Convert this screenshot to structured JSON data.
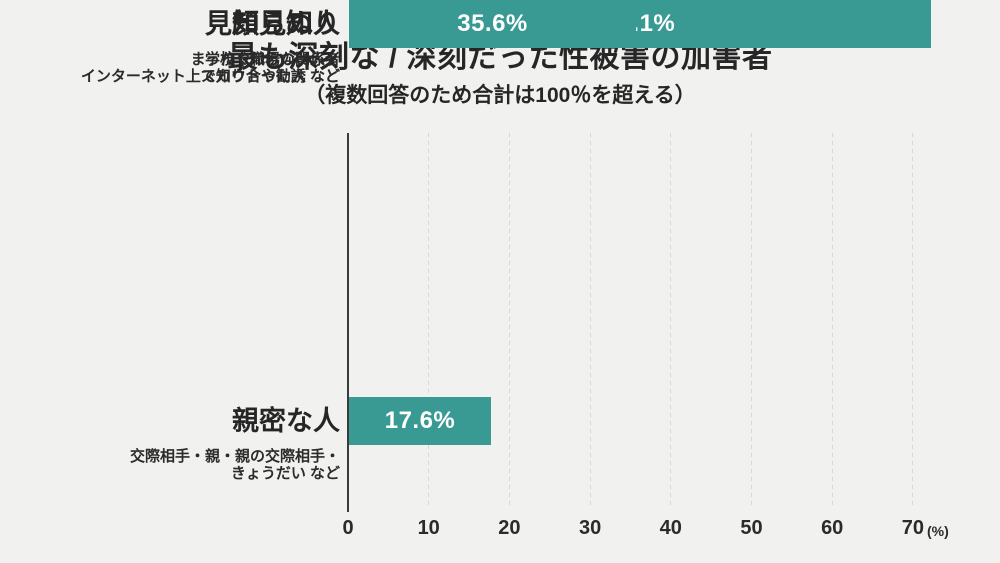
{
  "title": "最も深刻な / 深刻だった性被害の加害者",
  "subtitle": "（複数回答のため合計は100％を超える）",
  "colors": {
    "background": "#f1f1ef",
    "bar": "#399a94",
    "text": "#262626",
    "axis": "#3b3b3b",
    "gridline": "#d7d7d5",
    "value_label": "#ffffff"
  },
  "chart_data": {
    "type": "bar",
    "orientation": "horizontal",
    "title": "最も深刻な / 深刻だった性被害の加害者",
    "subtitle": "（複数回答のため合計は100％を超える）",
    "categories": [
      "親密な人",
      "顔見知り",
      "見知らぬ人"
    ],
    "values": [
      17.6,
      72.1,
      35.6
    ],
    "rows": [
      {
        "label": "親密な人",
        "sublabel_lines": [
          "交際相手・親・親の交際相手・",
          "きょうだい など"
        ],
        "value": 17.6,
        "value_label": "17.6%"
      },
      {
        "label": "顔見知り",
        "sublabel_lines": [
          "学校や職場の関係者",
          "インターネット上で知り合った人 など"
        ],
        "value": 72.1,
        "value_label": "72.1%"
      },
      {
        "label": "見知らぬ人",
        "sublabel_lines": [
          "まったく知らない人・",
          "スカウトや勧誘 など"
        ],
        "value": 35.6,
        "value_label": "35.6%"
      }
    ],
    "x_ticks": [
      0,
      10,
      20,
      30,
      40,
      50,
      60,
      70
    ],
    "x_unit": "(%)",
    "xlim": [
      0,
      73
    ],
    "xlabel": "",
    "ylabel": "",
    "grid": "vertical-dashed",
    "legend": "none"
  }
}
